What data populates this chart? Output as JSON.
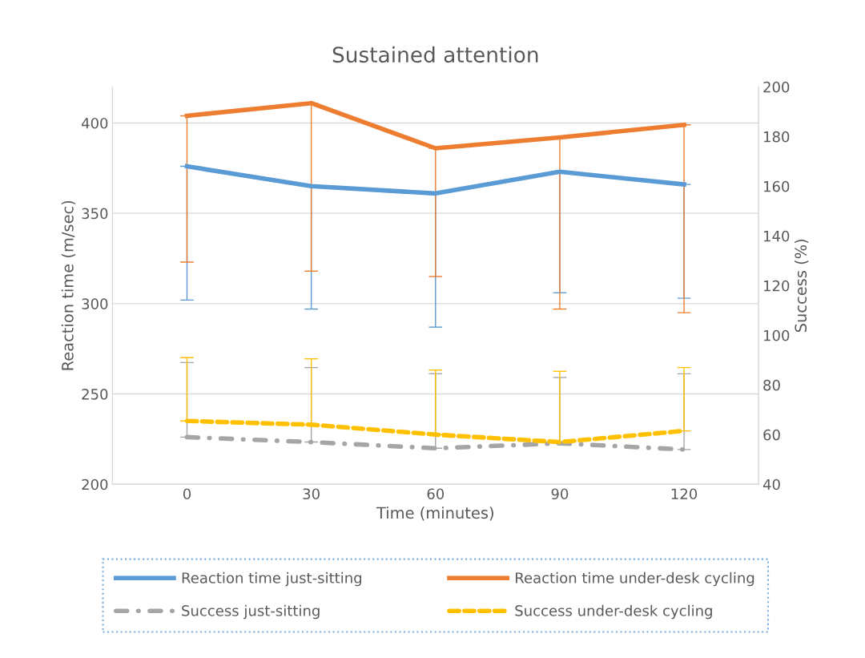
{
  "chart_data": {
    "type": "line",
    "title": "Sustained attention",
    "xlabel": "Time (minutes)",
    "ylabel": "Reaction time (m/sec)",
    "y2label": "Success (%)",
    "categories": [
      "0",
      "30",
      "60",
      "90",
      "120"
    ],
    "series": [
      {
        "name": "Reaction time just-sitting",
        "color": "#5b9bd5",
        "line_style": "solid",
        "values": [
          376,
          365,
          361,
          373,
          366
        ],
        "errors": [
          [
            302,
            376
          ],
          [
            297,
            365
          ],
          [
            287,
            361
          ],
          [
            306,
            373
          ],
          [
            303,
            366
          ]
        ]
      },
      {
        "name": "Reaction time under-desk cycling",
        "color": "#ed7d31",
        "line_style": "solid",
        "values": [
          404,
          411,
          386,
          392,
          399
        ],
        "errors": [
          [
            323,
            404
          ],
          [
            318,
            411
          ],
          [
            315,
            386
          ],
          [
            297,
            392
          ],
          [
            295,
            399
          ]
        ]
      },
      {
        "name": "Success just-sitting",
        "color": "#a5a5a5",
        "line_style": "dashdot",
        "axis": "y2",
        "values": [
          59,
          57,
          54.5,
          56.5,
          54
        ],
        "errors": [
          [
            59,
            89
          ],
          [
            57,
            87
          ],
          [
            54.5,
            84.5
          ],
          [
            56.5,
            83
          ],
          [
            54,
            84.5
          ]
        ]
      },
      {
        "name": "Success under-desk cycling",
        "color": "#ffc000",
        "line_style": "dashed",
        "axis": "y2",
        "values": [
          65.5,
          64,
          60,
          57,
          61.5
        ],
        "errors": [
          [
            65.5,
            91
          ],
          [
            64,
            90.5
          ],
          [
            60,
            86
          ],
          [
            57,
            85.5
          ],
          [
            61.5,
            87
          ]
        ]
      }
    ],
    "ylim": [
      200,
      420
    ],
    "yticks": [
      200,
      250,
      300,
      350,
      400
    ],
    "y2lim": [
      40,
      200
    ],
    "y2ticks": [
      40,
      60,
      80,
      100,
      120,
      140,
      160,
      180,
      200
    ],
    "grid": "y",
    "legend": "bottom",
    "marker": "none"
  }
}
